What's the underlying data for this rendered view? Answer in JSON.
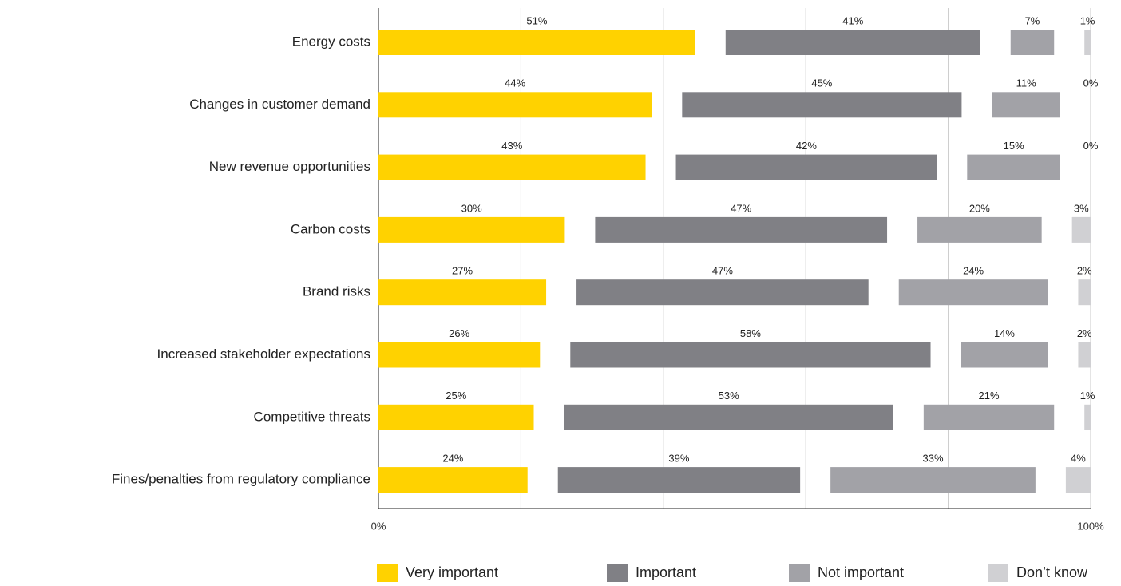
{
  "chart_data": {
    "type": "bar",
    "orientation": "horizontal",
    "stacked": true,
    "categories": [
      "Energy costs",
      "Changes in customer demand",
      "New revenue opportunities",
      "Carbon costs",
      "Brand risks",
      "Increased stakeholder expectations",
      "Competitive threats",
      "Fines/penalties from regulatory compliance"
    ],
    "series": [
      {
        "name": "Very important",
        "color": "#ffd200",
        "values": [
          51,
          44,
          43,
          30,
          27,
          26,
          25,
          24
        ],
        "value_labels": [
          "51%",
          "44%",
          "43%",
          "30%",
          "27%",
          "26%",
          "25%",
          "24%"
        ]
      },
      {
        "name": "Important",
        "color": "#808085",
        "values": [
          41,
          45,
          42,
          47,
          47,
          58,
          53,
          39
        ],
        "value_labels": [
          "41%",
          "45%",
          "42%",
          "47%",
          "47%",
          "58%",
          "53%",
          "39%"
        ]
      },
      {
        "name": "Not important",
        "color": "#a2a2a7",
        "values": [
          7,
          11,
          15,
          20,
          24,
          14,
          21,
          33
        ],
        "value_labels": [
          "7%",
          "11%",
          "15%",
          "20%",
          "24%",
          "14%",
          "21%",
          "33%"
        ]
      },
      {
        "name": "Don’t know",
        "color": "#d0d0d3",
        "values": [
          1,
          0,
          0,
          3,
          2,
          2,
          1,
          4
        ],
        "value_labels": [
          "1%",
          "0%",
          "0%",
          "3%",
          "2%",
          "2%",
          "1%",
          "4%"
        ]
      }
    ],
    "xlim": [
      0,
      100
    ],
    "xticks": [
      {
        "value": 0,
        "label": "0%"
      },
      {
        "value": 100,
        "label": "100%"
      }
    ],
    "gridlines": [
      20,
      40,
      60,
      80,
      100
    ],
    "grid": true,
    "legend": "bottom"
  }
}
